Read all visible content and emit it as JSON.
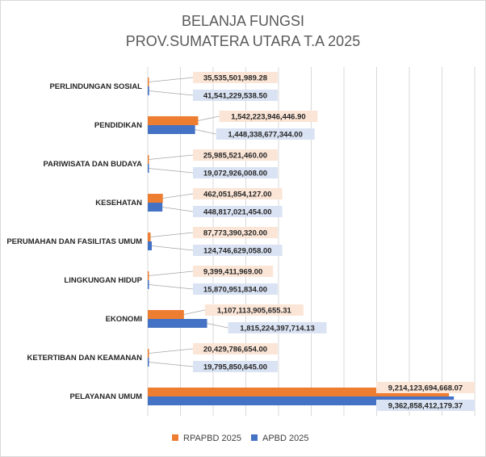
{
  "colors": {
    "rpapbd": "#ED7D31",
    "apbd": "#4472C4",
    "rpapbd_label_bg": "#FBE5D6",
    "apbd_label_bg": "#DAE3F3",
    "gridline": "#D9D9D9"
  },
  "chart_data": {
    "type": "bar",
    "orientation": "horizontal",
    "title": [
      "BELANJA FUNGSI",
      "PROV.SUMATERA UTARA T.A 2025"
    ],
    "categories": [
      "PERLINDUNGAN SOSIAL",
      "PENDIDIKAN",
      "PARIWISATA DAN BUDAYA",
      "KESEHATAN",
      "PERUMAHAN DAN FASILITAS UMUM",
      "LINGKUNGAN HIDUP",
      "EKONOMI",
      "KETERTIBAN DAN KEAMANAN",
      "PELAYANAN UMUM"
    ],
    "series": [
      {
        "name": "RPAPBD 2025",
        "values": [
          35535501989.28,
          1542223946446.9,
          25985521460.0,
          462051854127.0,
          87773390320.0,
          9399411969.0,
          1107113905655.31,
          20429786654.0,
          9214123694668.07
        ],
        "labels": [
          "35,535,501,989.28",
          "1,542,223,946,446.90",
          "25,985,521,460.00",
          "462,051,854,127.00",
          "87,773,390,320.00",
          "9,399,411,969.00",
          "1,107,113,905,655.31",
          "20,429,786,654.00",
          "9,214,123,694,668.07"
        ]
      },
      {
        "name": "APBD 2025",
        "values": [
          41541229538.5,
          1448338677344.0,
          19072926008.0,
          448817021454.0,
          124746629058.0,
          15870951834.0,
          1815224397714.13,
          19795850645.0,
          9362858412179.37
        ],
        "labels": [
          "41,541,229,538.50",
          "1,448,338,677,344.00",
          "19,072,926,008.00",
          "448,817,021,454.00",
          "124,746,629,058.00",
          "15,870,951,834.00",
          "1,815,224,397,714.13",
          "19,795,850,645.00",
          "9,362,858,412,179.37"
        ]
      }
    ],
    "xlim": [
      0,
      10000000000000
    ],
    "x_gridlines": true,
    "x_tick_labels_shown": false,
    "legend_placement": "bottom"
  }
}
